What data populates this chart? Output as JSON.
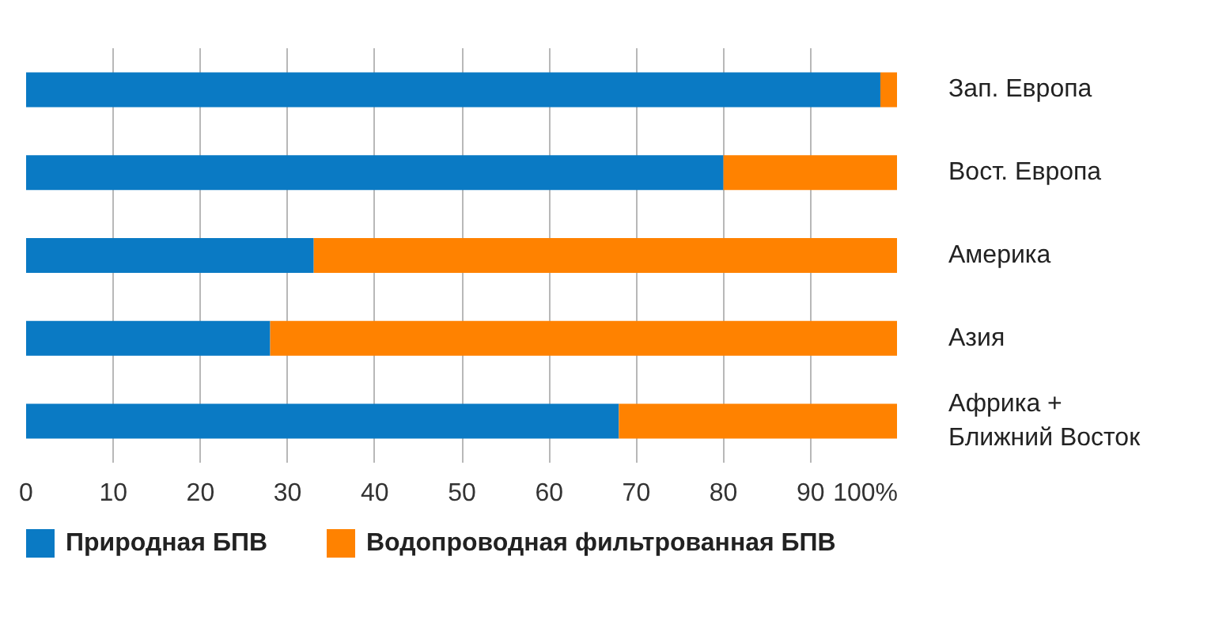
{
  "chart_data": {
    "type": "bar",
    "orientation": "horizontal",
    "stacked": true,
    "categories": [
      "Зап. Европа",
      "Вост. Европа",
      "Америка",
      "Азия",
      "Африка + Ближний Восток"
    ],
    "series": [
      {
        "name": "Природная БПВ",
        "color": "#0a7ac4",
        "values": [
          98,
          80,
          33,
          28,
          68
        ]
      },
      {
        "name": "Водопроводная фильтрованная БПВ",
        "color": "#ff8200",
        "values": [
          2,
          20,
          67,
          72,
          32
        ]
      }
    ],
    "xlim": [
      0,
      100
    ],
    "xticks": [
      0,
      10,
      20,
      30,
      40,
      50,
      60,
      70,
      80,
      90,
      {
        "value": 100,
        "label": "100%"
      }
    ],
    "grid": "x",
    "legend": "bottom"
  }
}
